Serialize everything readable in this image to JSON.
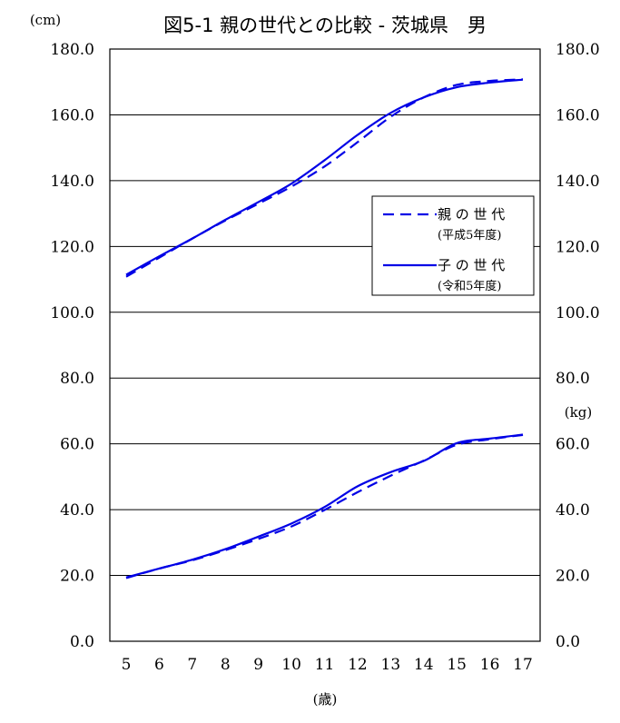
{
  "chart_data": {
    "type": "line",
    "title": "図5-1 親の世代との比較 - 茨城県　男",
    "left_unit": "(cm)",
    "right_unit": "(kg)",
    "xlabel": "(歳)",
    "categories": [
      "5",
      "6",
      "7",
      "8",
      "9",
      "10",
      "11",
      "12",
      "13",
      "14",
      "15",
      "16",
      "17"
    ],
    "y_ticks_left": [
      "0.0",
      "20.0",
      "40.0",
      "60.0",
      "80.0",
      "100.0",
      "120.0",
      "140.0",
      "160.0",
      "180.0"
    ],
    "y_ticks_right": [
      "0.0",
      "20.0",
      "40.0",
      "60.0",
      "80.0",
      "100.0",
      "120.0",
      "140.0",
      "160.0",
      "180.0"
    ],
    "ylim": [
      0,
      180
    ],
    "grid": true,
    "legend": {
      "position": "right",
      "entries": [
        {
          "label": "親 の 世 代",
          "sublabel": "(平成5年度)",
          "style": "dashed"
        },
        {
          "label": "子 の 世 代",
          "sublabel": "(令和5年度)",
          "style": "solid"
        }
      ]
    },
    "series": [
      {
        "group": "height",
        "style": "dashed",
        "values": [
          110.8,
          116.6,
          122.4,
          127.9,
          133.0,
          138.2,
          144.3,
          151.7,
          159.4,
          165.3,
          169.1,
          170.3,
          170.8
        ]
      },
      {
        "group": "height",
        "style": "solid",
        "values": [
          111.4,
          117.0,
          122.4,
          128.1,
          133.5,
          139.1,
          146.2,
          153.9,
          160.6,
          165.3,
          168.4,
          169.8,
          170.7
        ]
      },
      {
        "group": "weight",
        "style": "dashed",
        "values": [
          19.2,
          22.1,
          24.6,
          27.7,
          31.1,
          34.9,
          39.9,
          45.3,
          50.3,
          54.9,
          59.7,
          61.4,
          62.7
        ]
      },
      {
        "group": "weight",
        "style": "solid",
        "values": [
          19.4,
          22.1,
          24.8,
          28.0,
          31.8,
          35.8,
          40.8,
          47.1,
          51.4,
          54.8,
          60.2,
          61.6,
          62.8
        ]
      }
    ],
    "colors": {
      "line": "#0000e6",
      "grid": "#000000"
    }
  }
}
